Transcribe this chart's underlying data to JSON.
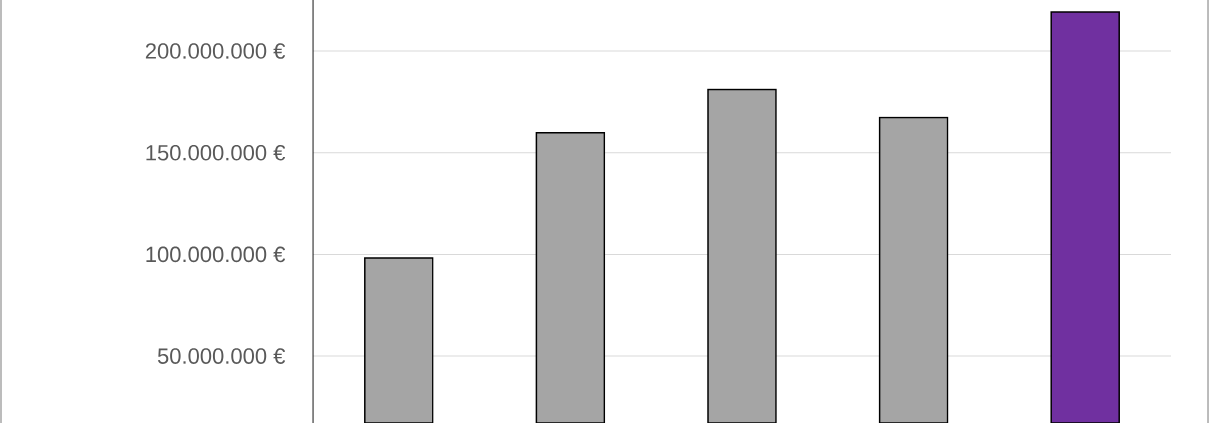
{
  "chart_data": {
    "type": "bar",
    "categories": [
      null,
      null,
      null,
      null,
      null
    ],
    "values": [
      98200000,
      159800000,
      181100000,
      167300000,
      219200000
    ],
    "colors": [
      "#a5a5a5",
      "#a5a5a5",
      "#a5a5a5",
      "#a5a5a5",
      "#7030a0"
    ],
    "ylim": [
      17100000,
      225100000
    ],
    "yticks": [
      {
        "value": 50000000,
        "label": "50.000.000 €"
      },
      {
        "value": 100000000,
        "label": "100.000.000 €"
      },
      {
        "value": 150000000,
        "label": "150.000.000 €"
      },
      {
        "value": 200000000,
        "label": "200.000.000 €"
      }
    ],
    "grid": "y"
  }
}
